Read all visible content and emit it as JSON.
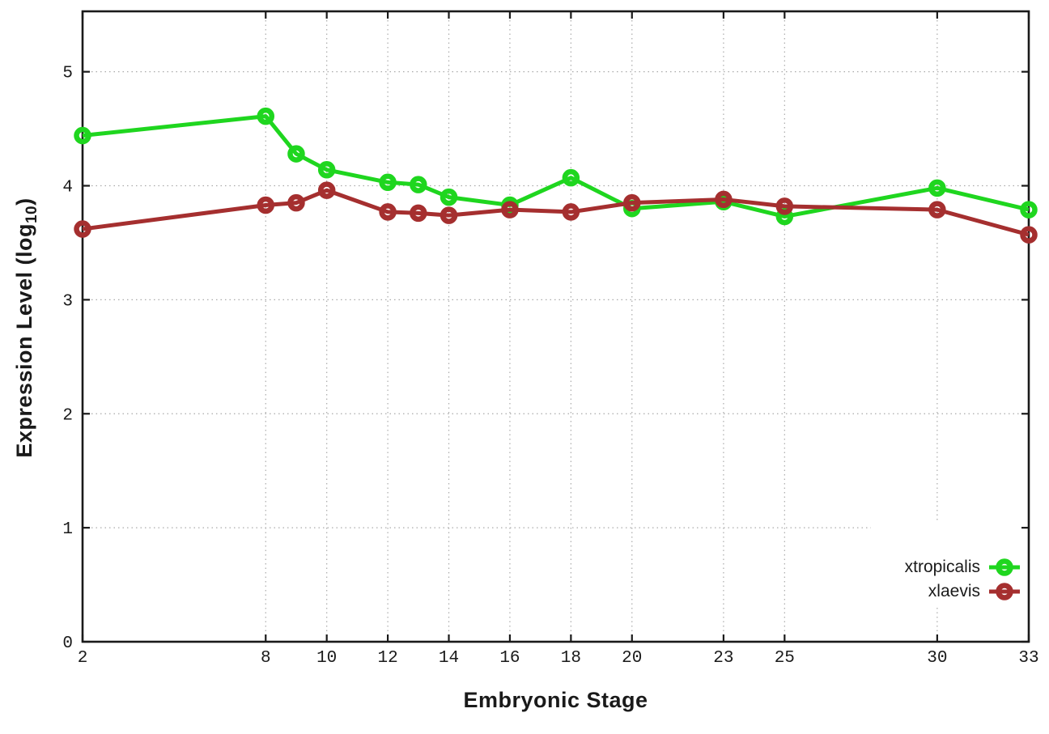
{
  "chart_data": {
    "type": "line",
    "title": "",
    "xlabel": "Embryonic Stage",
    "ylabel": "Expression Level (log10)",
    "ylabel_main": "Expression Level (log",
    "ylabel_sub": "10",
    "ylabel_close": ")",
    "x": [
      2,
      8,
      9,
      10,
      12,
      13,
      14,
      16,
      18,
      20,
      23,
      25,
      30,
      33
    ],
    "series": [
      {
        "name": "xtropicalis",
        "color": "#1fd61f",
        "values": [
          4.44,
          4.61,
          4.28,
          4.14,
          4.03,
          4.01,
          3.9,
          3.83,
          4.07,
          3.8,
          3.86,
          3.73,
          3.98,
          3.79
        ]
      },
      {
        "name": "xlaevis",
        "color": "#a52f2f",
        "values": [
          3.62,
          3.83,
          3.85,
          3.96,
          3.77,
          3.76,
          3.74,
          3.79,
          3.77,
          3.85,
          3.88,
          3.82,
          3.79,
          3.57
        ]
      }
    ],
    "x_ticks": [
      2,
      8,
      10,
      12,
      14,
      16,
      18,
      20,
      23,
      25,
      30,
      33
    ],
    "y_ticks": [
      0,
      1,
      2,
      3,
      4,
      5
    ],
    "xlim": [
      2,
      33
    ],
    "ylim": [
      0,
      5.53
    ],
    "grid": true,
    "legend_position": "inside-bottom-right",
    "marker": "open-circle",
    "colors": {
      "axis": "#1a1a1a",
      "grid": "#aaaaaa",
      "background": "#ffffff"
    }
  }
}
